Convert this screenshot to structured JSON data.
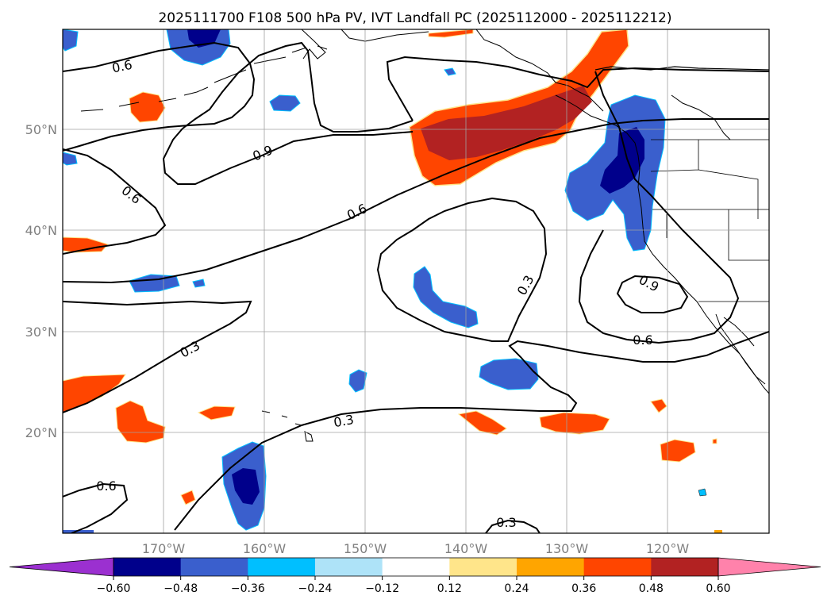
{
  "figure": {
    "title": "2025111700 F108 500 hPa PV, IVT Landfall PC (2025112000 - 2025112212)",
    "lat_labels": [
      "50°N",
      "40°N",
      "30°N",
      "20°N"
    ],
    "lon_labels": [
      "170°W",
      "160°W",
      "150°W",
      "140°W",
      "130°W",
      "120°W"
    ],
    "contour_labels": [
      "0.6",
      "0.9",
      "0.6",
      "0.6",
      "0.3",
      "0.3",
      "0.9",
      "0.6",
      "0.3",
      "0.6",
      "0.3"
    ]
  },
  "colorbar": {
    "ticks": [
      "−0.60",
      "−0.48",
      "−0.36",
      "−0.24",
      "−0.12",
      "0.12",
      "0.24",
      "0.36",
      "0.48",
      "0.60"
    ],
    "colors": [
      "#9b30d0",
      "#00008b",
      "#3a5fcd",
      "#00bfff",
      "#aee3f8",
      "#ffffff",
      "#ffe58a",
      "#ffa500",
      "#ff4500",
      "#b22222",
      "#ff82ab"
    ]
  },
  "colors": {
    "neg_light": "#aee3f8",
    "neg_cyan": "#00bfff",
    "neg_mid": "#3a5fcd",
    "neg_dark": "#00008b",
    "pos_light": "#ffe58a",
    "pos_orange": "#ffa500",
    "pos_redorange": "#ff4500",
    "pos_dark": "#b22222",
    "contour": "#000000",
    "grid": "#a0a0a0"
  }
}
